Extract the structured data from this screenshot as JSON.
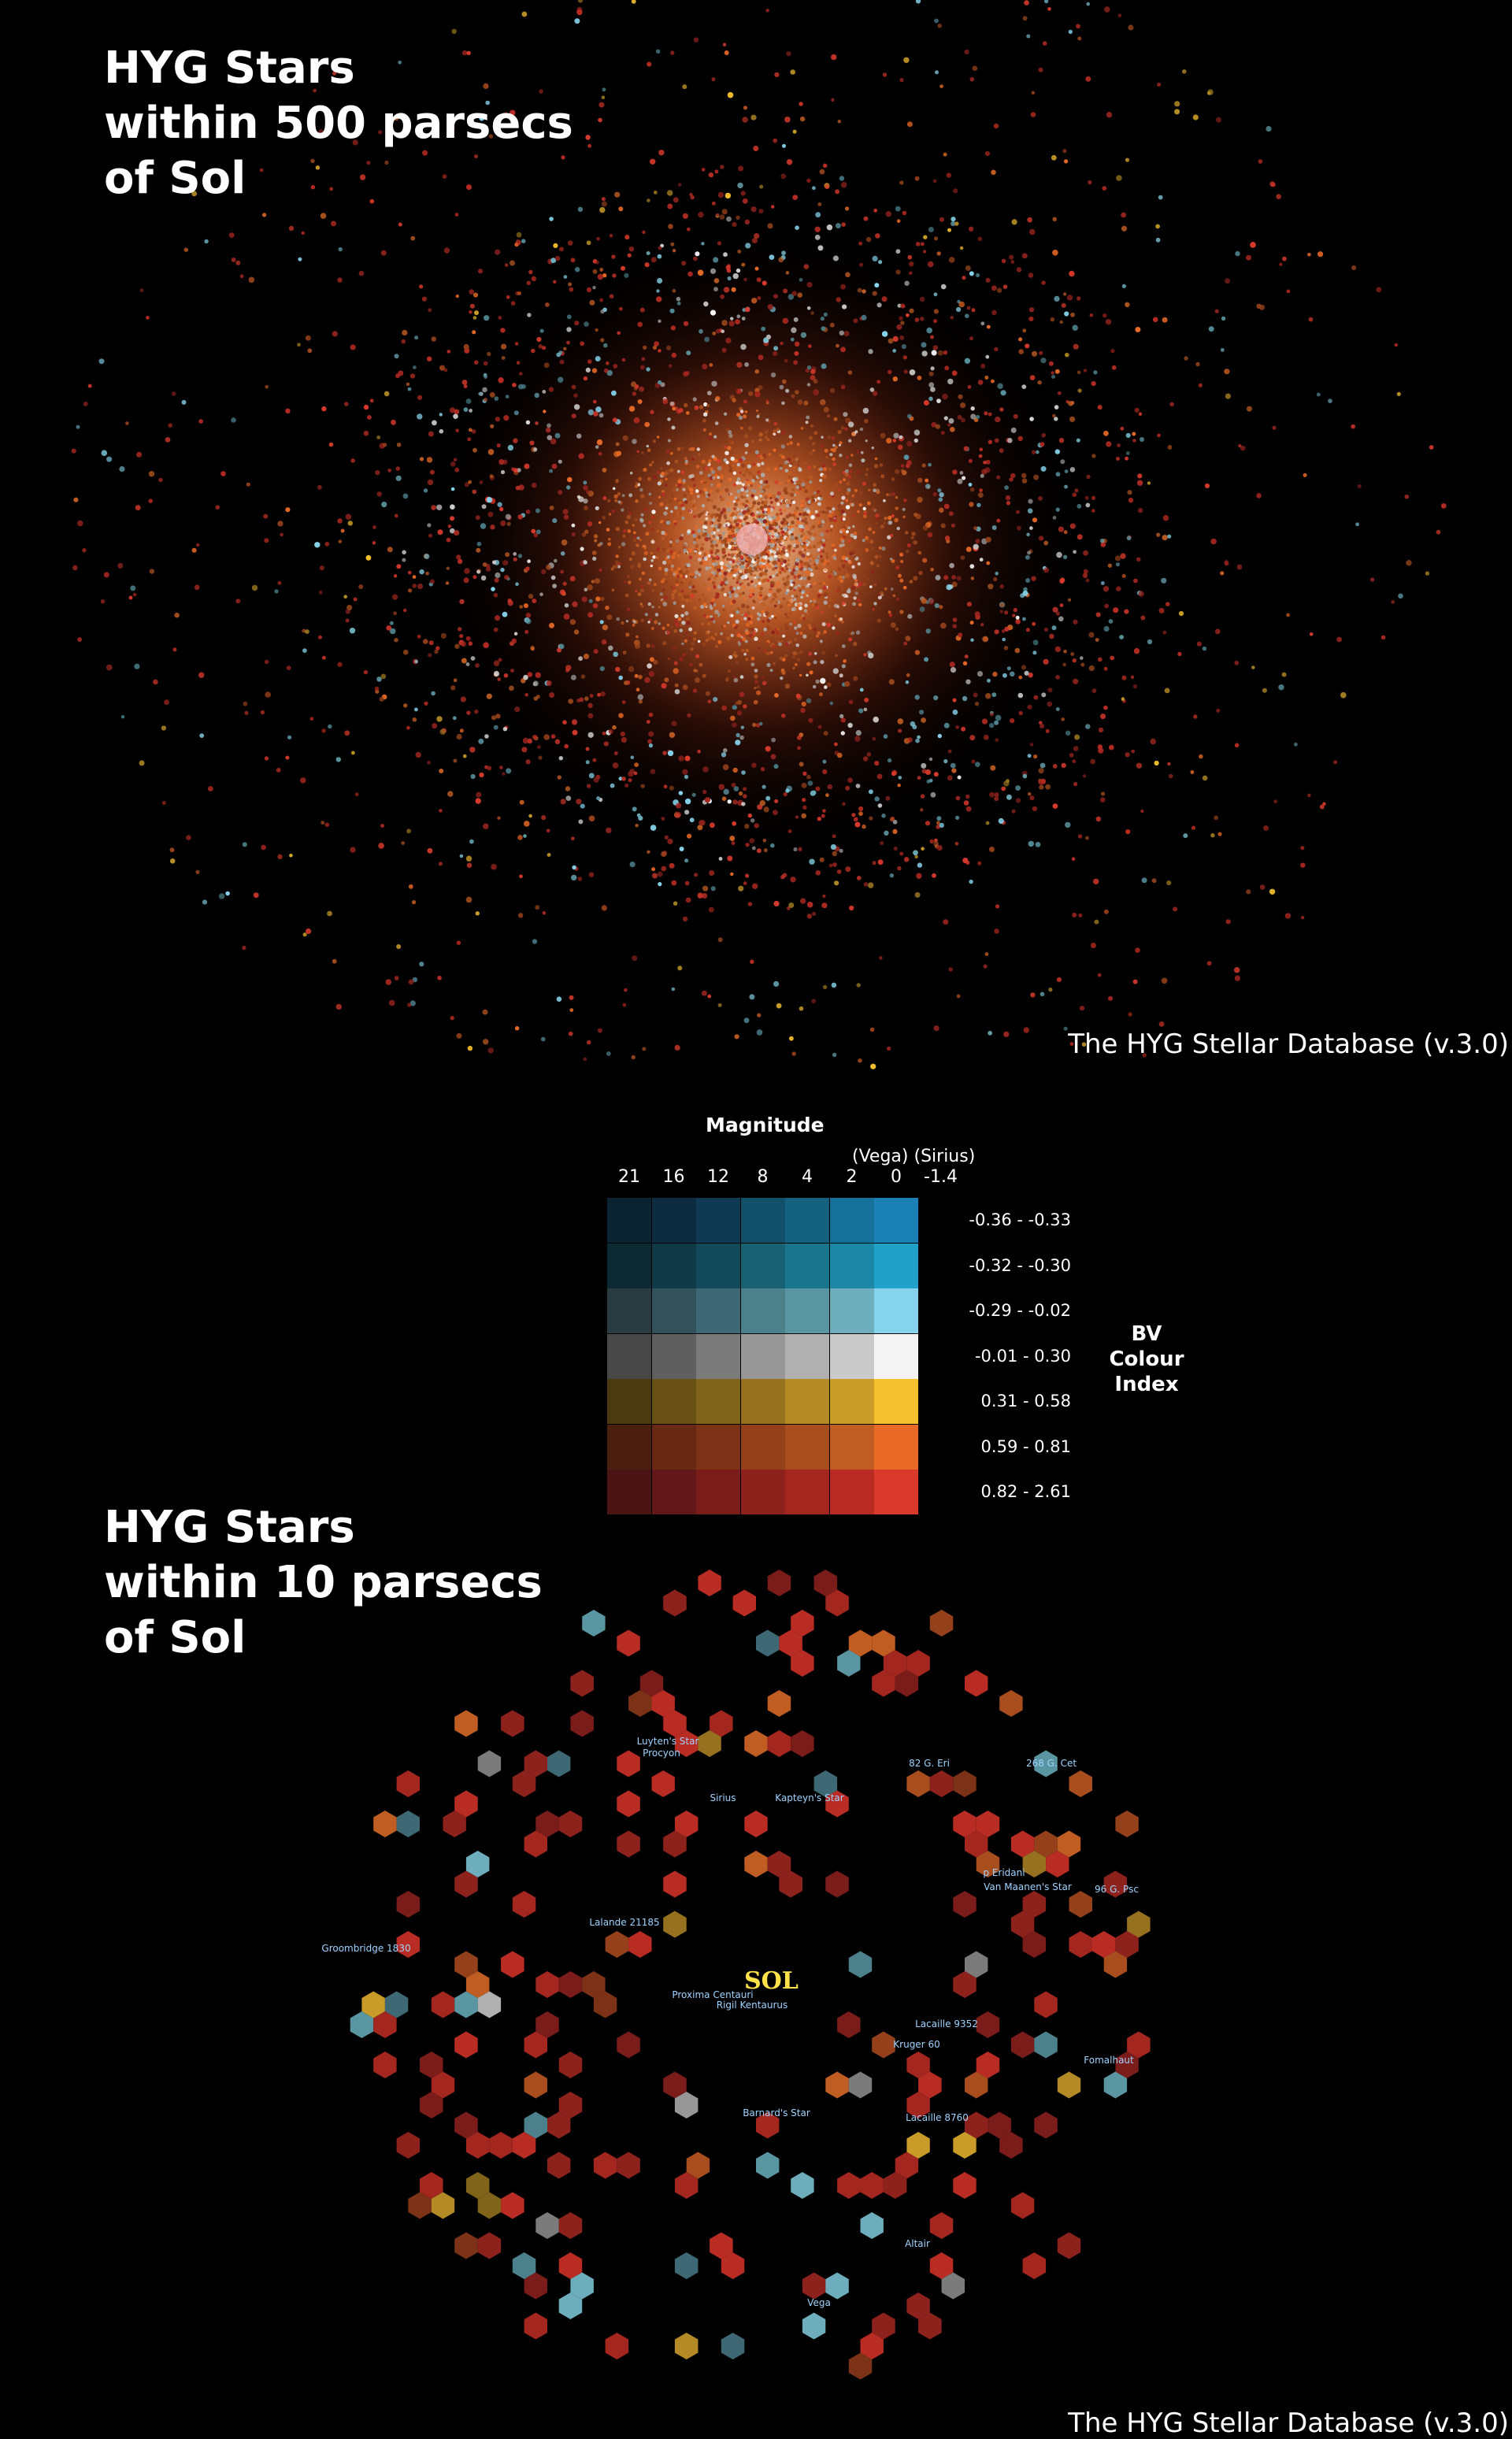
{
  "top_panel": {
    "title_lines": [
      "HYG Stars",
      "within 500 parsecs",
      "of Sol"
    ],
    "credit": "The HYG Stellar Database (v.3.0)"
  },
  "legend": {
    "title": "Magnitude",
    "magnitude_note": "(Vega) (Sirius)",
    "magnitudes": [
      "21",
      "16",
      "12",
      "8",
      "4",
      "2",
      "0",
      "-1.4"
    ],
    "bv_label_lines": [
      "BV",
      "Colour",
      "Index"
    ],
    "bv_ranges": [
      "-0.36 - -0.33",
      "-0.32 - -0.30",
      "-0.29 - -0.02",
      "-0.01 - 0.30",
      "0.31 - 0.58",
      "0.59 - 0.81",
      "0.82 - 2.61"
    ],
    "colors": [
      [
        "#0b2230",
        "#0d2c3f",
        "#0f3a53",
        "#115068",
        "#13607f",
        "#15719a",
        "#1a80b6"
      ],
      [
        "#0c2a33",
        "#0f3945",
        "#134a5a",
        "#176173",
        "#1a748b",
        "#1d88a6",
        "#22a1c8"
      ],
      [
        "#2a3b42",
        "#33525b",
        "#3e6873",
        "#4c818c",
        "#5a95a2",
        "#6eaebc",
        "#86d4ec"
      ],
      [
        "#474747",
        "#5f5f5f",
        "#7b7b7b",
        "#979797",
        "#b0b0b0",
        "#cacaca",
        "#f4f4f4"
      ],
      [
        "#4a3a10",
        "#6a5216",
        "#7f6419",
        "#967220",
        "#b38a25",
        "#c99c2a",
        "#f5c02e"
      ],
      [
        "#4a1f10",
        "#672814",
        "#7c3216",
        "#94401a",
        "#a84e1e",
        "#bf5d22",
        "#e86a26"
      ],
      [
        "#4a1414",
        "#621818",
        "#7a1c1a",
        "#8d221d",
        "#a3261f",
        "#b82c24",
        "#d93a2c"
      ]
    ]
  },
  "bottom_panel": {
    "title_lines": [
      "HYG Stars",
      "within 10 parsecs",
      "of Sol"
    ],
    "credit": "The HYG Stellar Database (v.3.0)",
    "center_label": "SOL",
    "star_labels": [
      "Luyten's Star",
      "Procyon",
      "82 G. Eri",
      "268 G. Cet",
      "Sirius",
      "Kapteyn's Star",
      "p Eridani",
      "Van Maanen's Star",
      "96 G. Psc",
      "Lalande 21185",
      "Groombridge 1830",
      "Proxima Centauri",
      "Rigil Kentaurus",
      "Lacaille 9352",
      "Kruger 60",
      "Fomalhaut",
      "Barnard's Star",
      "Lacaille 8760",
      "Altair",
      "Vega"
    ]
  }
}
